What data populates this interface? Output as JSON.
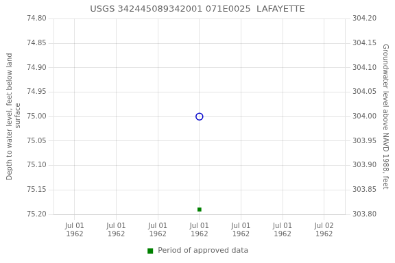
{
  "chart_data": {
    "type": "scatter",
    "title": "USGS 342445089342001 071E0025  LAFAYETTE",
    "ylabel": "Depth to water level, feet below land\n surface",
    "y2label": "Groundwater level above NAVD 1988, feet",
    "categories": [
      "Jul 01\n1962",
      "Jul 01\n1962",
      "Jul 01\n1962",
      "Jul 01\n1962",
      "Jul 01\n1962",
      "Jul 01\n1962",
      "Jul 02\n1962"
    ],
    "series": [
      {
        "values": [
          null,
          null,
          null,
          75.0,
          null,
          null,
          null
        ],
        "color": "#0000cc",
        "marker": "open_circle"
      },
      {
        "name": "Period of approved data",
        "values": [
          null,
          null,
          null,
          75.19,
          null,
          null,
          null
        ],
        "color": "#008000",
        "marker": "square"
      }
    ],
    "ylim": [
      75.2,
      74.8
    ],
    "yticks": [
      {
        "value": 74.8,
        "label": "74.80"
      },
      {
        "value": 74.85,
        "label": "74.85"
      },
      {
        "value": 74.9,
        "label": "74.90"
      },
      {
        "value": 74.95,
        "label": "74.95"
      },
      {
        "value": 75.0,
        "label": "75.00"
      },
      {
        "value": 75.05,
        "label": "75.05"
      },
      {
        "value": 75.1,
        "label": "75.10"
      },
      {
        "value": 75.15,
        "label": "75.15"
      },
      {
        "value": 75.2,
        "label": "75.20"
      }
    ],
    "y2lim": [
      303.8,
      304.2
    ],
    "y2ticks": [
      {
        "value": 304.2,
        "label": "304.20"
      },
      {
        "value": 304.15,
        "label": "304.15"
      },
      {
        "value": 304.1,
        "label": "304.10"
      },
      {
        "value": 304.05,
        "label": "304.05"
      },
      {
        "value": 304.0,
        "label": "304.00"
      },
      {
        "value": 303.95,
        "label": "303.95"
      },
      {
        "value": 303.9,
        "label": "303.90"
      },
      {
        "value": 303.85,
        "label": "303.85"
      },
      {
        "value": 303.8,
        "label": "303.80"
      }
    ],
    "grid": true,
    "legend": "bottom"
  }
}
